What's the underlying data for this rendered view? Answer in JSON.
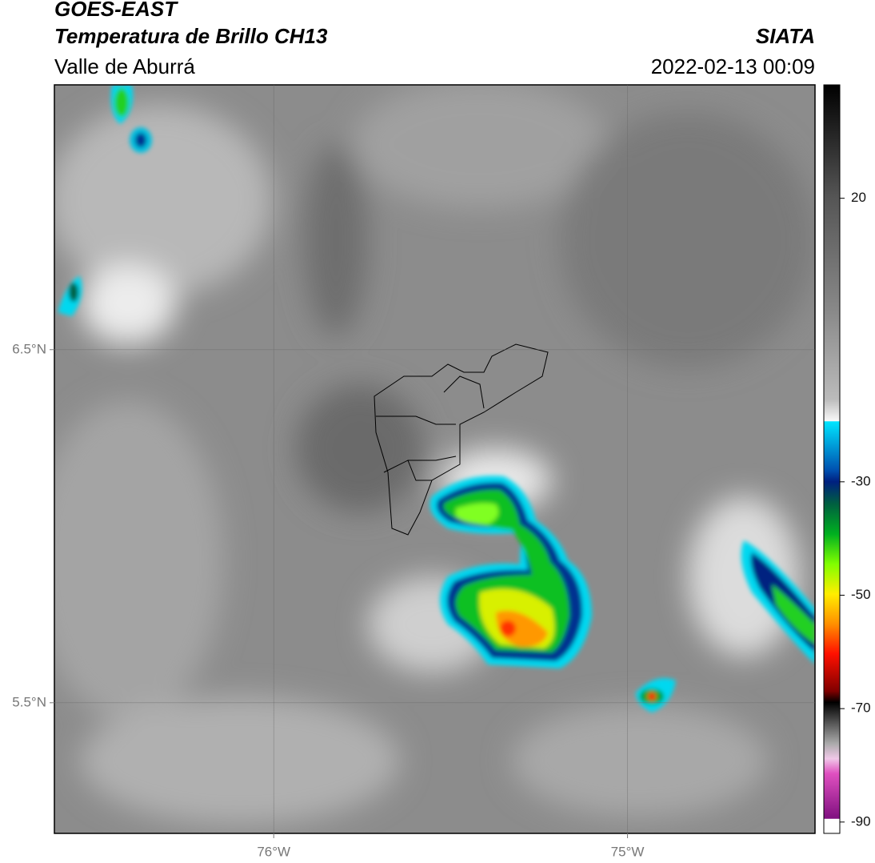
{
  "header": {
    "title": "GOES-EAST",
    "subtitle": "Temperatura de Brillo CH13",
    "region": "Valle de Aburrá",
    "source": "SIATA",
    "datetime": "2022-02-13 00:09"
  },
  "map": {
    "xlim": [
      -76.62,
      -74.47
    ],
    "ylim": [
      5.13,
      7.25
    ],
    "xticks": [
      {
        "value": -76,
        "label": "76°W"
      },
      {
        "value": -75,
        "label": "75°W"
      }
    ],
    "yticks": [
      {
        "value": 6.5,
        "label": "6.5°N"
      },
      {
        "value": 5.5,
        "label": "5.5°N"
      }
    ]
  },
  "colorbar": {
    "lim": [
      -92,
      40
    ],
    "ticks": [
      20,
      -30,
      -50,
      -70,
      -90
    ]
  }
}
